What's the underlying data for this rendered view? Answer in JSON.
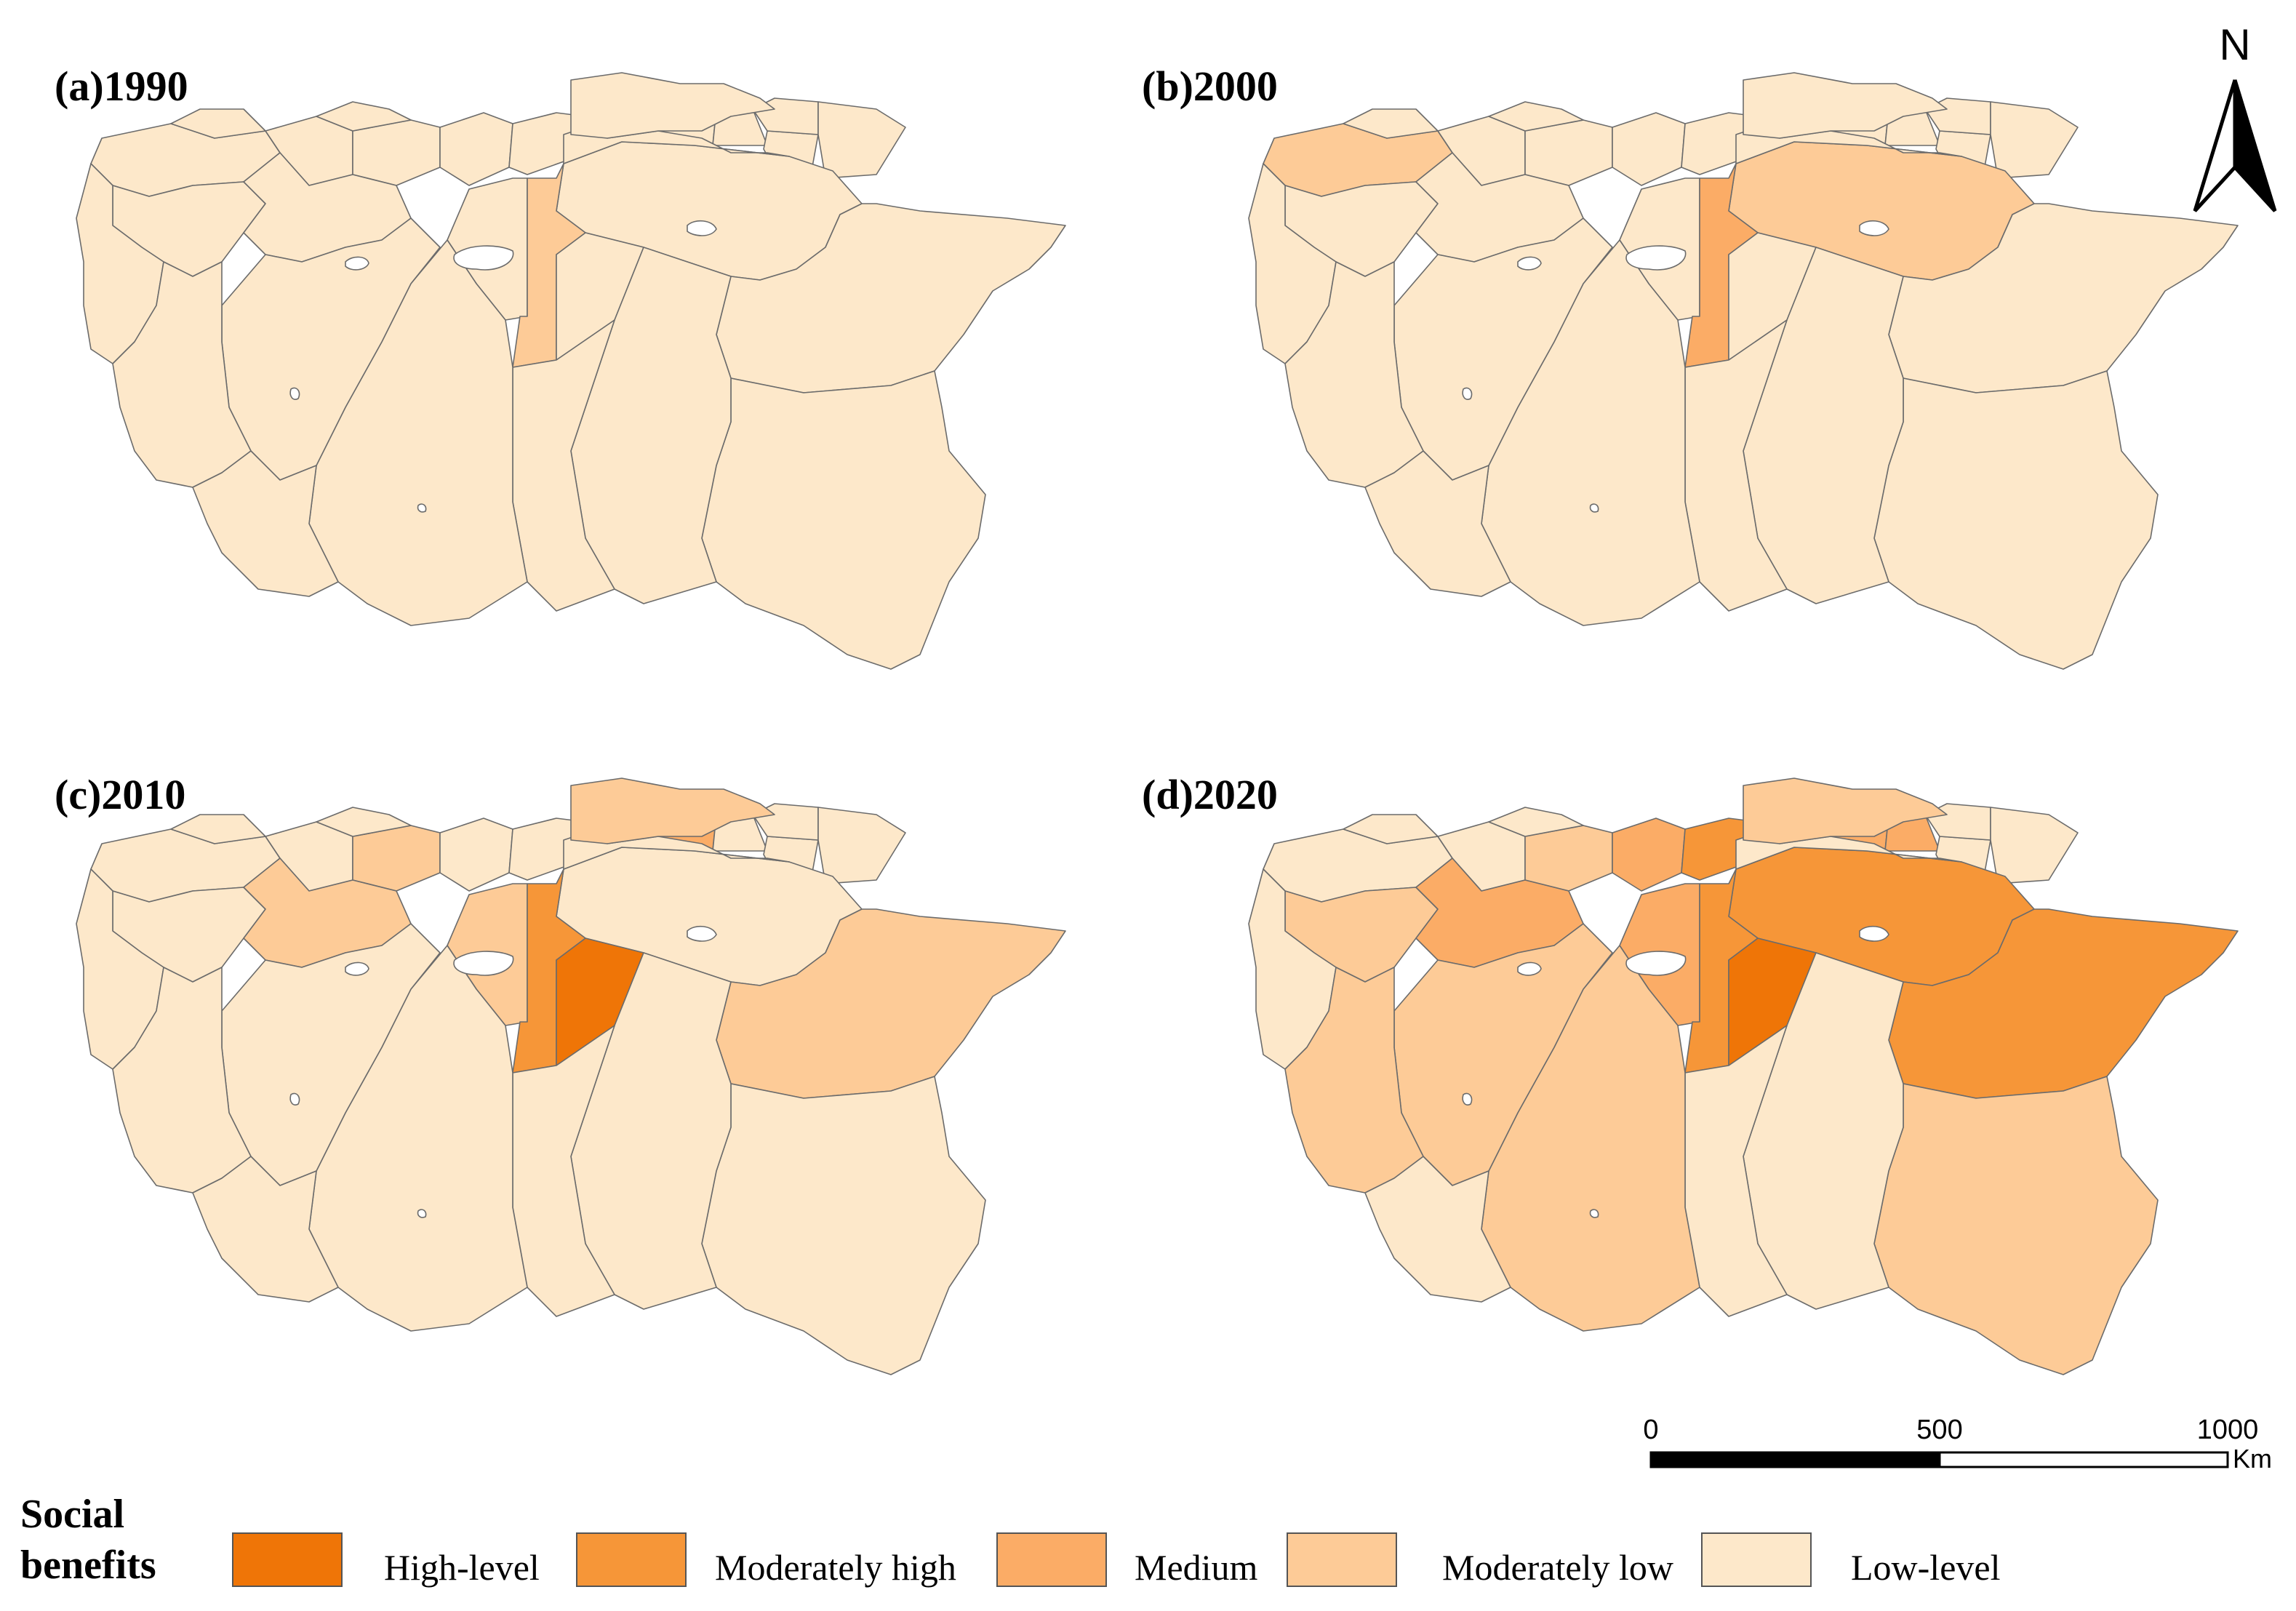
{
  "panels": [
    {
      "id": "a",
      "title": "(a)1990"
    },
    {
      "id": "b",
      "title": "(b)2000"
    },
    {
      "id": "c",
      "title": "(c)2010"
    },
    {
      "id": "d",
      "title": "(d)2020"
    }
  ],
  "north_arrow": {
    "label": "N"
  },
  "scale_bar": {
    "ticks": [
      "0",
      "500",
      "1000"
    ],
    "unit": "Km"
  },
  "legend": {
    "title_line1": "Social",
    "title_line2": "benefits",
    "items": [
      {
        "label": "High-level",
        "color": "#EF7507"
      },
      {
        "label": "Moderately high",
        "color": "#F69638"
      },
      {
        "label": "Medium",
        "color": "#FBAC66"
      },
      {
        "label": "Moderately low",
        "color": "#FDCB97"
      },
      {
        "label": "Low-level",
        "color": "#FDE8CA"
      }
    ]
  },
  "colors": {
    "border": "#6b6b6b",
    "hole": "#ffffff"
  }
}
